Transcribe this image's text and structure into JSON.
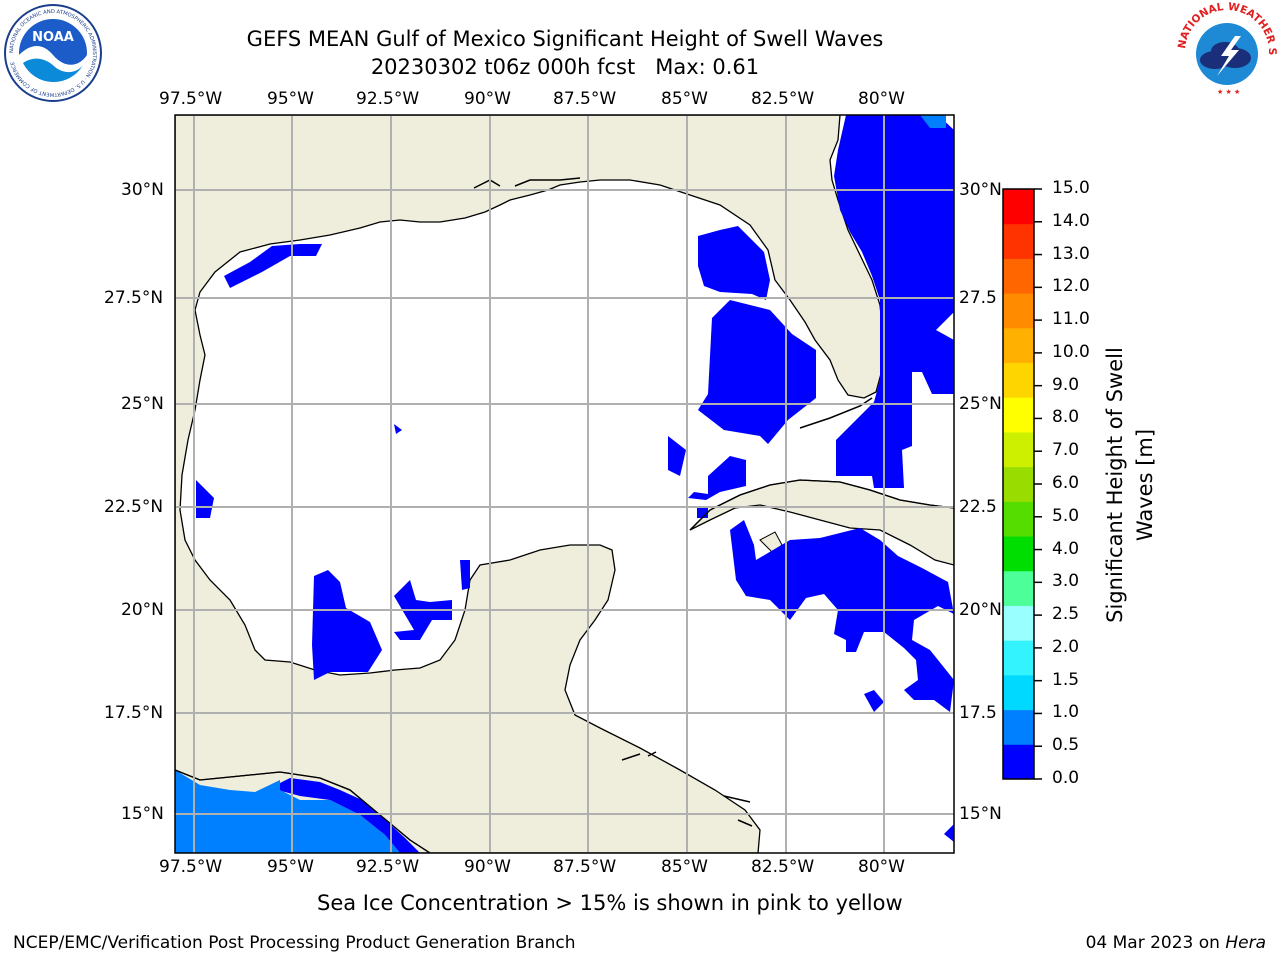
{
  "title": {
    "line1": "GEFS MEAN Gulf of Mexico Significant Height of Swell Waves",
    "line2": "20230302 t06z 000h fcst   Max: 0.61"
  },
  "logos": {
    "left_text": "NOAA",
    "left_ring_text": "NATIONAL OCEANIC AND ATMOSPHERIC ADMINISTRATION · U.S. DEPARTMENT OF COMMERCE",
    "right_ring_text": "NATIONAL WEATHER SERVICE"
  },
  "map": {
    "lon_labels": [
      "97.5°W",
      "95°W",
      "92.5°W",
      "90°W",
      "87.5°W",
      "85°W",
      "82.5°W",
      "80°W"
    ],
    "lat_labels": [
      "30°N",
      "27.5°N",
      "25°N",
      "22.5°N",
      "20°N",
      "17.5°N",
      "15°N"
    ],
    "lat_labels_right": [
      "30°N",
      "27.5",
      "25°N",
      "22.5",
      "20°N",
      "17.5",
      "15°N"
    ],
    "colors": {
      "land": "#efeedd",
      "ocean": "#ffffff",
      "swell_low": "#0000ff",
      "swell_mid": "#0080ff",
      "grid": "#b0b0b0"
    }
  },
  "colorbar": {
    "ticks": [
      "0.0",
      "0.5",
      "1.0",
      "1.5",
      "2.0",
      "2.5",
      "3.0",
      "4.0",
      "5.0",
      "6.0",
      "7.0",
      "8.0",
      "9.0",
      "10.0",
      "11.0",
      "12.0",
      "13.0",
      "14.0",
      "15.0"
    ],
    "colors": [
      "#0000ff",
      "#0080ff",
      "#00d9ff",
      "#33f3ff",
      "#99ffff",
      "#4cff99",
      "#00dd00",
      "#55dd00",
      "#99dd00",
      "#ccf000",
      "#ffff00",
      "#ffd500",
      "#ffb000",
      "#ff8c00",
      "#ff6600",
      "#ff3300",
      "#ff0000"
    ],
    "label_line1": "Significant Height of Swell",
    "label_line2": "Waves [m]"
  },
  "note": "Sea Ice Concentration > 15% is shown in pink to yellow",
  "footer": {
    "left": "NCEP/EMC/Verification Post Processing Product Generation Branch",
    "date": "04 Mar 2023 on ",
    "machine": "Hera"
  }
}
